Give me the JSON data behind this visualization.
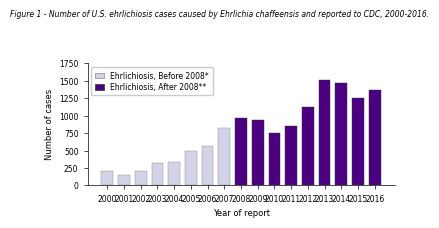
{
  "title": "Figure 1 - Number of U.S. ehrlichiosis cases caused by Ehrlichia chaffeensis and reported to CDC, 2000-2016.",
  "xlabel": "Year of report",
  "ylabel": "Number of cases",
  "years": [
    2000,
    2001,
    2002,
    2003,
    2004,
    2005,
    2006,
    2007,
    2008,
    2009,
    2010,
    2011,
    2012,
    2013,
    2014,
    2015,
    2016
  ],
  "values": [
    200,
    150,
    200,
    320,
    330,
    500,
    570,
    828,
    961,
    944,
    746,
    851,
    1128,
    1516,
    1474,
    1261,
    1376
  ],
  "colors": [
    "#d3d3e8",
    "#d3d3e8",
    "#d3d3e8",
    "#d3d3e8",
    "#d3d3e8",
    "#d3d3e8",
    "#d3d3e8",
    "#d3d3e8",
    "#4b0082",
    "#4b0082",
    "#4b0082",
    "#4b0082",
    "#4b0082",
    "#4b0082",
    "#4b0082",
    "#4b0082",
    "#4b0082"
  ],
  "legend_labels": [
    "Ehrlichiosis, Before 2008*",
    "Ehrlichiosis, After 2008**"
  ],
  "legend_colors": [
    "#d3d3e8",
    "#4b0082"
  ],
  "ylim": [
    0,
    1750
  ],
  "yticks": [
    0,
    250,
    500,
    750,
    1000,
    1250,
    1500,
    1750
  ],
  "background_color": "#ffffff",
  "bar_edge_color": "#ffffff",
  "title_fontsize": 5.5,
  "axis_fontsize": 6,
  "tick_fontsize": 5.5,
  "legend_fontsize": 5.5
}
